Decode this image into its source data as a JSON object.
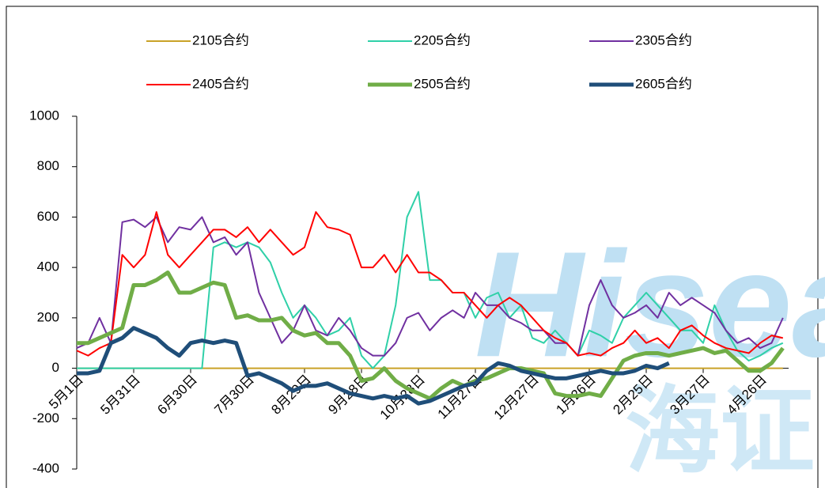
{
  "chart_data": {
    "type": "line",
    "watermark": [
      "Hisea",
      "海证"
    ],
    "x": [
      0,
      6,
      12,
      18,
      24,
      30,
      36,
      42,
      48,
      54,
      60,
      66,
      72,
      78,
      84,
      90,
      96,
      102,
      108,
      114,
      120,
      126,
      132,
      138,
      144,
      150,
      156,
      162,
      168,
      174,
      180,
      186,
      192,
      198,
      204,
      210,
      216,
      222,
      228,
      234,
      240,
      246,
      252,
      258,
      264,
      270,
      276,
      282,
      288,
      294,
      300,
      306,
      312,
      318,
      324,
      330,
      336,
      342,
      348,
      354,
      360,
      366,
      372
    ],
    "xlim": [
      0,
      375
    ],
    "xticks": [
      {
        "value": 0,
        "label": "5月1日"
      },
      {
        "value": 30,
        "label": "5月31日"
      },
      {
        "value": 60,
        "label": "6月30日"
      },
      {
        "value": 90,
        "label": "7月30日"
      },
      {
        "value": 120,
        "label": "8月29日"
      },
      {
        "value": 150,
        "label": "9月28日"
      },
      {
        "value": 180,
        "label": "10月28日"
      },
      {
        "value": 210,
        "label": "11月27日"
      },
      {
        "value": 240,
        "label": "12月27日"
      },
      {
        "value": 270,
        "label": "1月26日"
      },
      {
        "value": 300,
        "label": "2月25日"
      },
      {
        "value": 330,
        "label": "3月27日"
      },
      {
        "value": 360,
        "label": "4月26日"
      }
    ],
    "ylim": [
      -400,
      1000
    ],
    "yticks": [
      -400,
      -200,
      0,
      200,
      400,
      600,
      800,
      1000
    ],
    "grid": false,
    "legend": "top",
    "series": [
      {
        "name": "2105合约",
        "color": "#c9a227",
        "width": 2,
        "values": [
          0,
          0,
          0,
          0,
          0,
          0,
          0,
          0,
          0,
          0,
          0,
          0,
          0,
          0,
          0,
          0,
          0,
          0,
          0,
          0,
          0,
          0,
          0,
          0,
          0,
          0,
          0,
          0,
          0,
          0,
          0,
          0,
          0,
          0,
          0,
          0,
          0,
          0,
          0,
          0,
          0,
          0,
          0,
          0,
          0,
          0,
          0,
          0,
          0,
          0,
          0,
          0,
          0,
          0,
          0,
          0,
          0,
          0,
          0,
          0,
          0,
          0,
          0
        ]
      },
      {
        "name": "2205合约",
        "color": "#2fd0a8",
        "width": 2,
        "values": [
          0,
          0,
          0,
          0,
          0,
          0,
          0,
          0,
          0,
          0,
          0,
          0,
          480,
          500,
          480,
          500,
          480,
          420,
          300,
          200,
          250,
          200,
          130,
          150,
          200,
          50,
          0,
          50,
          250,
          600,
          700,
          350,
          350,
          300,
          300,
          200,
          280,
          300,
          200,
          250,
          120,
          100,
          150,
          100,
          50,
          150,
          130,
          100,
          200,
          250,
          300,
          250,
          200,
          150,
          150,
          100,
          250,
          150,
          70,
          30,
          50,
          80,
          100
        ]
      },
      {
        "name": "2305合约",
        "color": "#7030a0",
        "width": 2,
        "values": [
          80,
          100,
          200,
          100,
          580,
          590,
          560,
          600,
          500,
          560,
          550,
          600,
          500,
          520,
          450,
          500,
          300,
          200,
          100,
          150,
          250,
          150,
          130,
          200,
          150,
          80,
          50,
          50,
          100,
          200,
          220,
          150,
          200,
          230,
          200,
          300,
          250,
          250,
          200,
          180,
          150,
          150,
          100,
          100,
          50,
          250,
          350,
          250,
          200,
          220,
          250,
          200,
          300,
          250,
          280,
          250,
          220,
          150,
          100,
          120,
          80,
          100,
          200
        ]
      },
      {
        "name": "2405合约",
        "color": "#ff0000",
        "width": 2,
        "values": [
          70,
          50,
          80,
          100,
          450,
          400,
          450,
          620,
          450,
          400,
          450,
          500,
          550,
          550,
          520,
          560,
          500,
          550,
          500,
          450,
          480,
          620,
          560,
          550,
          530,
          400,
          400,
          450,
          380,
          450,
          380,
          380,
          350,
          300,
          300,
          250,
          200,
          250,
          280,
          250,
          200,
          150,
          120,
          100,
          50,
          60,
          50,
          80,
          100,
          150,
          100,
          120,
          80,
          150,
          170,
          130,
          100,
          80,
          70,
          60,
          100,
          130,
          120
        ]
      },
      {
        "name": "2505合约",
        "color": "#70ad47",
        "width": 5,
        "values": [
          100,
          100,
          120,
          140,
          160,
          330,
          330,
          350,
          380,
          300,
          300,
          320,
          340,
          330,
          200,
          210,
          190,
          190,
          200,
          150,
          130,
          140,
          100,
          100,
          50,
          -50,
          -40,
          0,
          -50,
          -80,
          -100,
          -120,
          -80,
          -50,
          -70,
          -50,
          -40,
          -20,
          0,
          0,
          -10,
          -20,
          -100,
          -110,
          -110,
          -100,
          -110,
          -40,
          30,
          50,
          60,
          60,
          50,
          60,
          70,
          80,
          60,
          70,
          30,
          -10,
          -10,
          20,
          80
        ]
      },
      {
        "name": "2605合约",
        "color": "#1f4e79",
        "width": 5,
        "values": [
          -20,
          -20,
          -10,
          100,
          120,
          160,
          140,
          120,
          80,
          50,
          100,
          110,
          100,
          110,
          100,
          -30,
          -20,
          -40,
          -60,
          -90,
          -70,
          -70,
          -60,
          -80,
          -100,
          -110,
          -120,
          -110,
          -120,
          -110,
          -140,
          -130,
          -110,
          -90,
          -70,
          -60,
          -10,
          20,
          10,
          -10,
          -20,
          -30,
          -40,
          -40,
          -30,
          -20,
          -10,
          -20,
          -20,
          -10,
          10,
          0,
          20,
          null,
          null,
          null,
          null,
          null,
          null,
          null,
          null,
          null,
          null
        ]
      }
    ]
  }
}
